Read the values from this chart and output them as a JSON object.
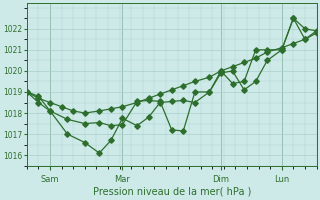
{
  "xlabel": "Pression niveau de la mer( hPa )",
  "bg_color": "#ceeae8",
  "grid_color": "#aacfcc",
  "line_color": "#2d6e2d",
  "ylim": [
    1015.5,
    1023.2
  ],
  "ytick_values": [
    1016,
    1017,
    1018,
    1019,
    1020,
    1021,
    1022
  ],
  "ytick_top": 1023,
  "xtick_labels": [
    "Sam",
    "Mar",
    "Dim",
    "Lun"
  ],
  "xtick_positions": [
    0.08,
    0.33,
    0.67,
    0.88
  ],
  "xlim": [
    0.0,
    1.0
  ],
  "series1_x": [
    0.0,
    0.04,
    0.08,
    0.12,
    0.16,
    0.2,
    0.25,
    0.29,
    0.33,
    0.38,
    0.42,
    0.46,
    0.5,
    0.54,
    0.58,
    0.63,
    0.67,
    0.71,
    0.75,
    0.79,
    0.83,
    0.88,
    0.92,
    0.96,
    1.0
  ],
  "series1_y": [
    1019.0,
    1018.7,
    1018.5,
    1018.3,
    1018.1,
    1018.0,
    1018.1,
    1018.2,
    1018.3,
    1018.5,
    1018.7,
    1018.9,
    1019.1,
    1019.3,
    1019.5,
    1019.7,
    1020.0,
    1020.2,
    1020.4,
    1020.6,
    1020.9,
    1021.1,
    1021.3,
    1021.5,
    1021.8
  ],
  "series2_x": [
    0.0,
    0.04,
    0.08,
    0.14,
    0.2,
    0.25,
    0.29,
    0.33,
    0.38,
    0.42,
    0.46,
    0.5,
    0.54,
    0.58,
    0.63,
    0.67,
    0.71,
    0.75,
    0.79,
    0.83,
    0.88,
    0.92,
    0.96,
    1.0
  ],
  "series2_y": [
    1019.0,
    1018.8,
    1018.1,
    1017.7,
    1017.5,
    1017.55,
    1017.4,
    1017.45,
    1018.55,
    1018.6,
    1018.55,
    1017.2,
    1017.15,
    1019.0,
    1019.0,
    1019.9,
    1020.0,
    1019.1,
    1019.5,
    1020.5,
    1021.0,
    1022.5,
    1022.0,
    1021.9
  ],
  "series3_x": [
    0.0,
    0.04,
    0.08,
    0.14,
    0.2,
    0.25,
    0.29,
    0.33,
    0.38,
    0.42,
    0.46,
    0.5,
    0.54,
    0.58,
    0.63,
    0.67,
    0.71,
    0.75,
    0.79,
    0.83,
    0.88,
    0.92,
    0.96,
    1.0
  ],
  "series3_y": [
    1019.0,
    1018.5,
    1018.1,
    1017.0,
    1016.6,
    1016.1,
    1016.7,
    1017.75,
    1017.4,
    1017.8,
    1018.5,
    1018.55,
    1018.6,
    1018.5,
    1019.0,
    1020.0,
    1019.4,
    1019.5,
    1021.0,
    1021.0,
    1021.0,
    1022.5,
    1021.5,
    1021.9
  ]
}
